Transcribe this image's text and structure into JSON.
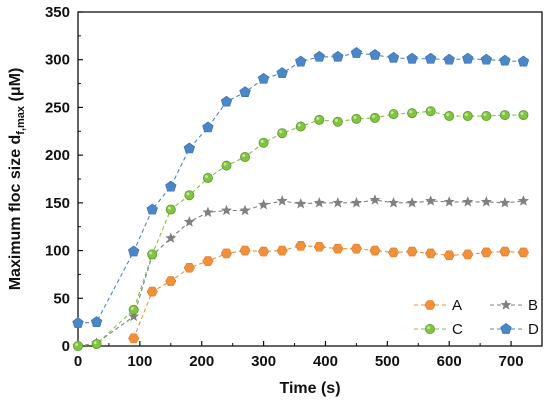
{
  "chart_data": {
    "type": "line",
    "xlabel": "Time (s)",
    "ylabel": {
      "main": "Maximum floc size d",
      "subscript": "f,max",
      "unit": " (μM)"
    },
    "xlim": [
      0,
      750
    ],
    "ylim": [
      0,
      350
    ],
    "xticks": [
      "0",
      "100",
      "200",
      "300",
      "400",
      "500",
      "600",
      "700"
    ],
    "yticks": [
      "0",
      "50",
      "100",
      "150",
      "200",
      "250",
      "300",
      "350"
    ],
    "grid": false,
    "legend_position": "bottom-right",
    "series": [
      {
        "name": "A",
        "color": "#f0903a",
        "marker": "hexagon",
        "points": [
          [
            90,
            8
          ],
          [
            120,
            57
          ],
          [
            150,
            68
          ],
          [
            180,
            82
          ],
          [
            210,
            89
          ],
          [
            240,
            97
          ],
          [
            270,
            100
          ],
          [
            300,
            99
          ],
          [
            330,
            100
          ],
          [
            360,
            105
          ],
          [
            390,
            104
          ],
          [
            420,
            102
          ],
          [
            450,
            102
          ],
          [
            480,
            100
          ],
          [
            510,
            98
          ],
          [
            540,
            99
          ],
          [
            570,
            97
          ],
          [
            600,
            95
          ],
          [
            630,
            96
          ],
          [
            660,
            98
          ],
          [
            690,
            99
          ],
          [
            720,
            98
          ]
        ]
      },
      {
        "name": "B",
        "color": "#808080",
        "marker": "star",
        "points": [
          [
            0,
            0
          ],
          [
            30,
            3
          ],
          [
            90,
            31
          ],
          [
            120,
            95
          ],
          [
            150,
            113
          ],
          [
            180,
            130
          ],
          [
            210,
            140
          ],
          [
            240,
            142
          ],
          [
            270,
            142
          ],
          [
            300,
            148
          ],
          [
            330,
            152
          ],
          [
            360,
            149
          ],
          [
            390,
            150
          ],
          [
            420,
            150
          ],
          [
            450,
            150
          ],
          [
            480,
            153
          ],
          [
            510,
            150
          ],
          [
            540,
            150
          ],
          [
            570,
            152
          ],
          [
            600,
            151
          ],
          [
            630,
            151
          ],
          [
            660,
            151
          ],
          [
            690,
            150
          ],
          [
            720,
            152
          ]
        ]
      },
      {
        "name": "C",
        "color": "#82c341",
        "marker": "circle",
        "points": [
          [
            0,
            0
          ],
          [
            30,
            2
          ],
          [
            90,
            38
          ],
          [
            120,
            96
          ],
          [
            150,
            143
          ],
          [
            180,
            158
          ],
          [
            210,
            176
          ],
          [
            240,
            189
          ],
          [
            270,
            198
          ],
          [
            300,
            213
          ],
          [
            330,
            223
          ],
          [
            360,
            230
          ],
          [
            390,
            237
          ],
          [
            420,
            235
          ],
          [
            450,
            238
          ],
          [
            480,
            239
          ],
          [
            510,
            243
          ],
          [
            540,
            244
          ],
          [
            570,
            246
          ],
          [
            600,
            241
          ],
          [
            630,
            241
          ],
          [
            660,
            241
          ],
          [
            690,
            242
          ],
          [
            720,
            242
          ]
        ]
      },
      {
        "name": "D",
        "color": "#4a86c8",
        "marker": "pentagon",
        "points": [
          [
            0,
            24
          ],
          [
            30,
            25
          ],
          [
            90,
            99
          ],
          [
            120,
            143
          ],
          [
            150,
            167
          ],
          [
            180,
            207
          ],
          [
            210,
            229
          ],
          [
            240,
            256
          ],
          [
            270,
            266
          ],
          [
            300,
            280
          ],
          [
            330,
            286
          ],
          [
            360,
            298
          ],
          [
            390,
            303
          ],
          [
            420,
            303
          ],
          [
            450,
            307
          ],
          [
            480,
            305
          ],
          [
            510,
            302
          ],
          [
            540,
            301
          ],
          [
            570,
            301
          ],
          [
            600,
            300
          ],
          [
            630,
            301
          ],
          [
            660,
            300
          ],
          [
            690,
            299
          ],
          [
            720,
            298
          ]
        ]
      }
    ]
  }
}
